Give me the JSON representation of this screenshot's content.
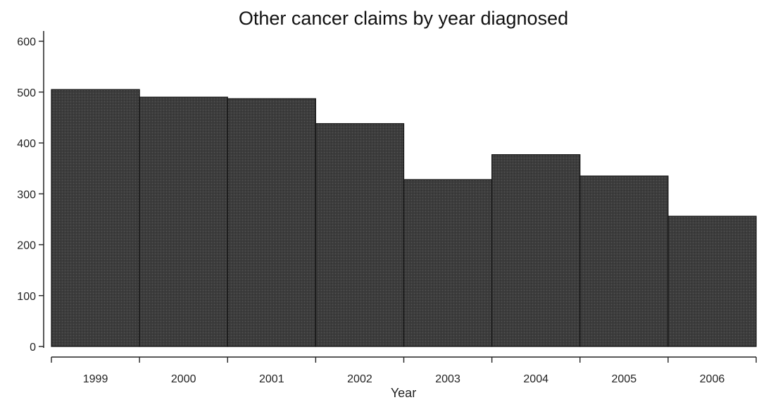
{
  "chart_data": {
    "type": "bar",
    "title": "Other cancer claims by year diagnosed",
    "xlabel": "Year",
    "ylabel": "",
    "categories": [
      "1999",
      "2000",
      "2001",
      "2002",
      "2003",
      "2004",
      "2005",
      "2006"
    ],
    "values": [
      505,
      490,
      487,
      438,
      328,
      377,
      335,
      256
    ],
    "y_ticks": [
      0,
      100,
      200,
      300,
      400,
      500,
      600
    ],
    "ylim": [
      0,
      620
    ],
    "grid": false,
    "legend": "none",
    "colors": {
      "bar": "#3d3d3d",
      "bar_edge": "#111111",
      "axis": "#222222",
      "text": "#111111"
    }
  }
}
